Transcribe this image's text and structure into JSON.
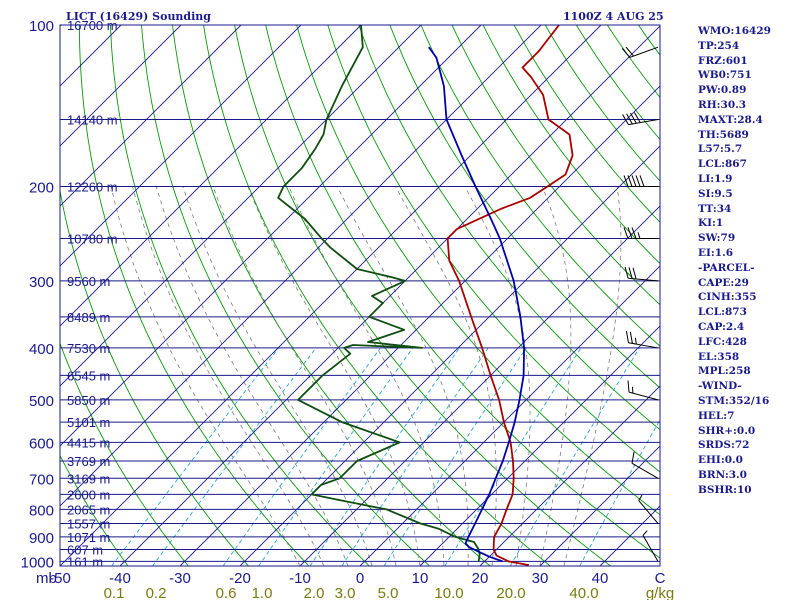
{
  "chart_data": {
    "type": "skew-t log-p sounding",
    "title": "LICT (16429) Sounding",
    "time": "1100Z  4 AUG 25",
    "pressure_axis": {
      "unit": "mb",
      "ticks": [
        100,
        200,
        300,
        400,
        500,
        600,
        700,
        800,
        900,
        1000
      ],
      "range": [
        100,
        1020
      ],
      "scale": "log"
    },
    "temperature_axis": {
      "ticks": [
        -50,
        -40,
        -30,
        -20,
        -10,
        0,
        10,
        20,
        30,
        40
      ],
      "last_tick_label": "C",
      "range": [
        -50,
        50
      ]
    },
    "mixing_ratio_axis": {
      "unit": "g/kg",
      "labels": [
        "0.1",
        "0.2",
        "0.6",
        "1.0",
        "2.0",
        "3.0",
        "5.0",
        "10.0",
        "20.0",
        "40.0"
      ]
    },
    "height_labels": [
      {
        "p": 100,
        "label": "16700 m"
      },
      {
        "p": 150,
        "label": "14140 m"
      },
      {
        "p": 200,
        "label": "12260 m"
      },
      {
        "p": 250,
        "label": "10780 m"
      },
      {
        "p": 300,
        "label": "9560 m"
      },
      {
        "p": 350,
        "label": "8489 m"
      },
      {
        "p": 400,
        "label": "7530 m"
      },
      {
        "p": 450,
        "label": "6545 m"
      },
      {
        "p": 500,
        "label": "5850 m"
      },
      {
        "p": 550,
        "label": "5101 m"
      },
      {
        "p": 600,
        "label": "4415 m"
      },
      {
        "p": 650,
        "label": "3769 m"
      },
      {
        "p": 700,
        "label": "3169 m"
      },
      {
        "p": 750,
        "label": "2600 m"
      },
      {
        "p": 800,
        "label": "2065 m"
      },
      {
        "p": 850,
        "label": "1557 m"
      },
      {
        "p": 900,
        "label": "1071 m"
      },
      {
        "p": 950,
        "label": "607 m"
      },
      {
        "p": 1000,
        "label": "161 m"
      }
    ],
    "series": [
      {
        "color": "#aa0000",
        "points": [
          [
            1016,
            28
          ],
          [
            1000,
            24
          ],
          [
            975,
            21
          ],
          [
            950,
            19.5
          ],
          [
            925,
            18.5
          ],
          [
            900,
            17.5
          ],
          [
            850,
            16.5
          ],
          [
            800,
            15
          ],
          [
            750,
            13.5
          ],
          [
            700,
            11
          ],
          [
            650,
            8
          ],
          [
            600,
            4.5
          ],
          [
            550,
            0
          ],
          [
            500,
            -4.5
          ],
          [
            450,
            -10
          ],
          [
            400,
            -16
          ],
          [
            350,
            -23
          ],
          [
            300,
            -31
          ],
          [
            275,
            -36
          ],
          [
            250,
            -40
          ],
          [
            240,
            -40
          ],
          [
            220,
            -36
          ],
          [
            210,
            -33
          ],
          [
            200,
            -32
          ],
          [
            190,
            -31
          ],
          [
            175,
            -33
          ],
          [
            160,
            -37
          ],
          [
            150,
            -43
          ],
          [
            135,
            -48
          ],
          [
            125,
            -53
          ],
          [
            120,
            -56
          ],
          [
            112,
            -56
          ],
          [
            100,
            -57
          ]
        ]
      },
      {
        "color": "#104d10",
        "points": [
          [
            1000,
            19
          ],
          [
            970,
            18
          ],
          [
            950,
            17
          ],
          [
            920,
            15
          ],
          [
            900,
            11
          ],
          [
            870,
            7
          ],
          [
            850,
            3
          ],
          [
            800,
            -5
          ],
          [
            770,
            -14
          ],
          [
            750,
            -20
          ],
          [
            720,
            -20
          ],
          [
            700,
            -18
          ],
          [
            650,
            -18
          ],
          [
            600,
            -14
          ],
          [
            550,
            -27
          ],
          [
            500,
            -38
          ],
          [
            450,
            -38
          ],
          [
            410,
            -37
          ],
          [
            400,
            -39
          ],
          [
            395,
            -38
          ],
          [
            400,
            -26
          ],
          [
            390,
            -36
          ],
          [
            370,
            -32
          ],
          [
            350,
            -40
          ],
          [
            330,
            -40
          ],
          [
            320,
            -43
          ],
          [
            300,
            -40
          ],
          [
            295,
            -43
          ],
          [
            285,
            -50
          ],
          [
            260,
            -58
          ],
          [
            250,
            -61
          ],
          [
            230,
            -67
          ],
          [
            210,
            -75
          ],
          [
            200,
            -76
          ],
          [
            185,
            -76
          ],
          [
            170,
            -77
          ],
          [
            160,
            -78
          ],
          [
            150,
            -80
          ],
          [
            130,
            -83
          ],
          [
            110,
            -86
          ],
          [
            100,
            -90
          ]
        ]
      },
      {
        "color": "#0000aa",
        "points": [
          [
            1000,
            23
          ],
          [
            980,
            20
          ],
          [
            960,
            17.5
          ],
          [
            940,
            15
          ],
          [
            925,
            13.8
          ],
          [
            900,
            13.2
          ],
          [
            850,
            12.1
          ],
          [
            800,
            10.9
          ],
          [
            750,
            9.6
          ],
          [
            700,
            8
          ],
          [
            650,
            6.3
          ],
          [
            600,
            4.2
          ],
          [
            550,
            1.8
          ],
          [
            500,
            -1.1
          ],
          [
            450,
            -4.5
          ],
          [
            400,
            -9
          ],
          [
            350,
            -14.8
          ],
          [
            300,
            -21.9
          ],
          [
            250,
            -31.3
          ],
          [
            230,
            -36
          ],
          [
            200,
            -44
          ],
          [
            175,
            -51.5
          ],
          [
            150,
            -60
          ],
          [
            130,
            -66
          ],
          [
            115,
            -72
          ],
          [
            110,
            -75
          ]
        ]
      }
    ],
    "wind_barbs": [
      {
        "p": 110,
        "dir": 250,
        "speed": 20
      },
      {
        "p": 150,
        "dir": 260,
        "speed": 40
      },
      {
        "p": 200,
        "dir": 270,
        "speed": 50
      },
      {
        "p": 250,
        "dir": 270,
        "speed": 35
      },
      {
        "p": 300,
        "dir": 275,
        "speed": 30
      },
      {
        "p": 400,
        "dir": 280,
        "speed": 25
      },
      {
        "p": 500,
        "dir": 285,
        "speed": 15
      },
      {
        "p": 700,
        "dir": 300,
        "speed": 10
      },
      {
        "p": 850,
        "dir": 320,
        "speed": 5
      },
      {
        "p": 1000,
        "dir": 330,
        "speed": 5
      }
    ]
  },
  "indices": [
    "WMO:16429",
    "TP:254",
    "FRZ:601",
    "WB0:751",
    "PW:0.89",
    "RH:30.3",
    "MAXT:28.4",
    "TH:5689",
    "L57:5.7",
    "LCL:867",
    "LI:1.9",
    "SI:9.5",
    "TT:34",
    "KI:1",
    "SW:79",
    "EI:1.6",
    "-PARCEL-",
    "CAPE:29",
    "CINH:355",
    "LCL:873",
    "CAP:2.4",
    "LFC:428",
    "EL:358",
    "MPL:258",
    "-WIND-",
    "STM:352/16",
    "HEL:7",
    "SHR+:0.0",
    "SRDS:72",
    "EHI:0.0",
    "BRN:3.0",
    "BSHR:10"
  ],
  "colors": {
    "frame": "#1a1a8c",
    "isobar": "#1a1a8c",
    "isotherm": "#1a1a8c",
    "dry_adiabat": "#0a9a0a",
    "moist_adiabat": "#7a7a7a",
    "mixing_ratio": "#2aa6d0",
    "label_blue": "#1a1a8c",
    "label_olive": "#7a7a10"
  }
}
